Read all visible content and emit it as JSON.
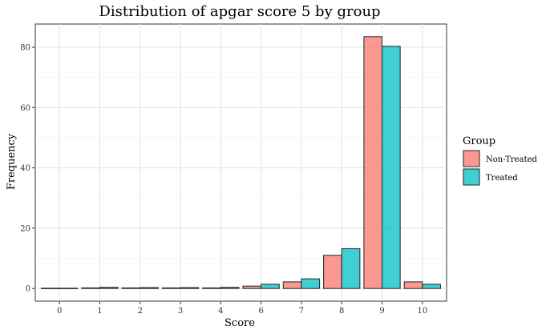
{
  "chart_data": {
    "type": "bar",
    "title": "Distribution of apgar score 5 by group",
    "xlabel": "Score",
    "ylabel": "Frequency",
    "categories": [
      "0",
      "1",
      "2",
      "3",
      "4",
      "6",
      "7",
      "8",
      "9",
      "10"
    ],
    "series": [
      {
        "name": "Non-Treated",
        "color": "#F8766D",
        "values": [
          0.1,
          0.2,
          0.2,
          0.2,
          0.2,
          0.8,
          2.2,
          11,
          83.5,
          2.2
        ]
      },
      {
        "name": "Treated",
        "color": "#00BFC4",
        "values": [
          0.1,
          0.4,
          0.3,
          0.3,
          0.4,
          1.4,
          3.2,
          13.2,
          80.3,
          1.4
        ]
      }
    ],
    "ylim": [
      -4.2,
      87.7
    ],
    "yticks": [
      0,
      20,
      40,
      60,
      80
    ],
    "grid": true,
    "legend": {
      "title": "Group",
      "position": "right"
    }
  }
}
